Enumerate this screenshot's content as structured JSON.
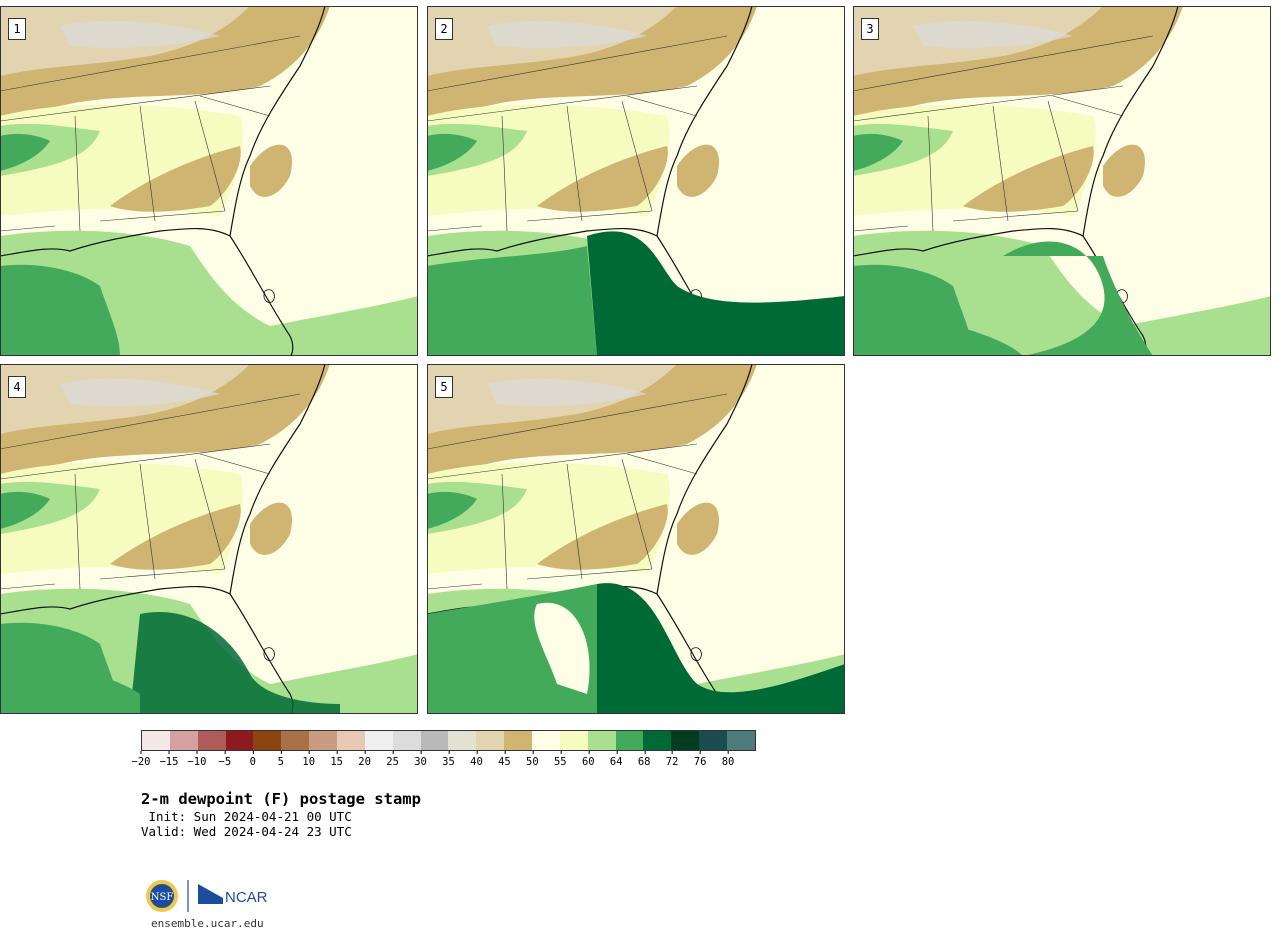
{
  "panels": [
    {
      "label": "1"
    },
    {
      "label": "2"
    },
    {
      "label": "3"
    },
    {
      "label": "4"
    },
    {
      "label": "5"
    }
  ],
  "colorbar": {
    "colors": [
      "#f5e8e8",
      "#d4a0a0",
      "#b05a5a",
      "#8c1a1e",
      "#8c4510",
      "#aa7048",
      "#c89c80",
      "#e6c8b4",
      "#f0f0f0",
      "#dcdcdc",
      "#b9b9b9",
      "#e2e2d2",
      "#e2d4b0",
      "#d0b472",
      "#fefee6",
      "#f6fcc0",
      "#a8e090",
      "#42aa5a",
      "#006a36",
      "#003c20",
      "#1a4c50",
      "#4e7c7c"
    ],
    "tick_labels": [
      "−20",
      "−15",
      "−10",
      "−5",
      "0",
      "5",
      "10",
      "15",
      "20",
      "25",
      "30",
      "35",
      "40",
      "45",
      "50",
      "55",
      "60",
      "64",
      "68",
      "72",
      "76",
      "80"
    ]
  },
  "title": "2-m dewpoint (F) postage stamp",
  "init": " Init: Sun 2024-04-21 00 UTC",
  "valid": "Valid: Wed 2024-04-24 23 UTC",
  "logo": {
    "nsf_text": "NSF",
    "ncar_text": "NCAR"
  },
  "footer": {
    "url": "ensemble.ucar.edu"
  }
}
